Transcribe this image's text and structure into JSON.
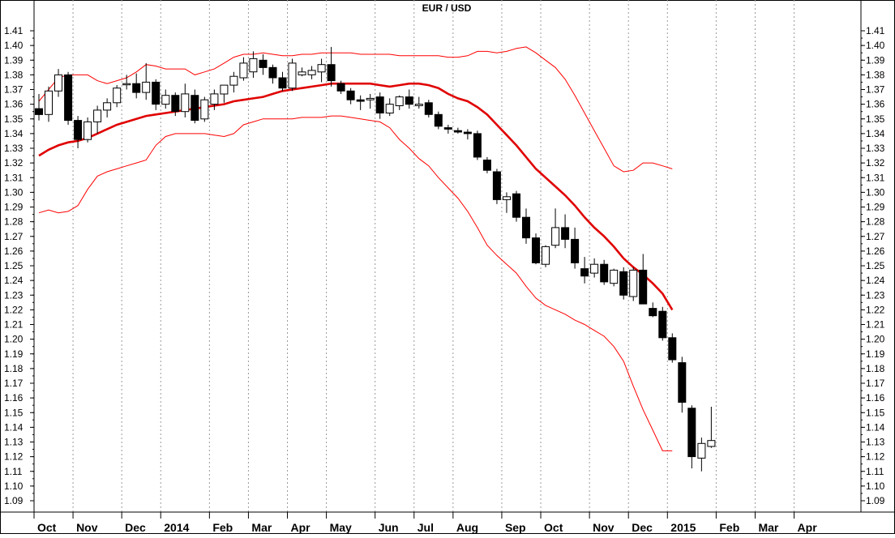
{
  "chart_data": {
    "type": "candlestick",
    "title": "EUR / USD",
    "y_ticks": [
      1.09,
      1.1,
      1.11,
      1.12,
      1.13,
      1.14,
      1.15,
      1.16,
      1.17,
      1.18,
      1.19,
      1.2,
      1.21,
      1.22,
      1.23,
      1.24,
      1.25,
      1.26,
      1.27,
      1.28,
      1.29,
      1.3,
      1.31,
      1.32,
      1.33,
      1.34,
      1.35,
      1.36,
      1.37,
      1.38,
      1.39,
      1.4,
      1.41
    ],
    "y_tick_labels": [
      "1.09",
      "1.10",
      "1.11",
      "1.12",
      "1.13",
      "1.14",
      "1.15",
      "1.16",
      "1.17",
      "1.18",
      "1.19",
      "1.20",
      "1.21",
      "1.22",
      "1.23",
      "1.24",
      "1.25",
      "1.26",
      "1.27",
      "1.28",
      "1.29",
      "1.30",
      "1.31",
      "1.32",
      "1.33",
      "1.34",
      "1.35",
      "1.36",
      "1.37",
      "1.38",
      "1.39",
      "1.40",
      "1.41"
    ],
    "ylim": [
      1.08,
      1.42
    ],
    "x_labels": [
      {
        "label": "Oct",
        "week": 0
      },
      {
        "label": "Nov",
        "week": 4
      },
      {
        "label": "Dec",
        "week": 9
      },
      {
        "label": "2014",
        "week": 13
      },
      {
        "label": "Feb",
        "week": 18
      },
      {
        "label": "Mar",
        "week": 22
      },
      {
        "label": "Apr",
        "week": 26
      },
      {
        "label": "May",
        "week": 30
      },
      {
        "label": "Jun",
        "week": 35
      },
      {
        "label": "Jul",
        "week": 39
      },
      {
        "label": "Aug",
        "week": 43
      },
      {
        "label": "Sep",
        "week": 48
      },
      {
        "label": "Oct",
        "week": 52
      },
      {
        "label": "Nov",
        "week": 57
      },
      {
        "label": "Dec",
        "week": 61
      },
      {
        "label": "2015",
        "week": 65
      },
      {
        "label": "Feb",
        "week": 70
      },
      {
        "label": "Mar",
        "week": 74
      },
      {
        "label": "Apr",
        "week": 78
      }
    ],
    "x_range_weeks": [
      0,
      81
    ],
    "grid_vertical": true,
    "colors": {
      "bullish": "#ffffff",
      "bearish": "#000000",
      "band": "#ff0000",
      "ma": "#e00000"
    },
    "candles": [
      {
        "o": 1.357,
        "h": 1.367,
        "l": 1.349,
        "c": 1.353
      },
      {
        "o": 1.353,
        "h": 1.372,
        "l": 1.348,
        "c": 1.369
      },
      {
        "o": 1.369,
        "h": 1.384,
        "l": 1.365,
        "c": 1.38
      },
      {
        "o": 1.38,
        "h": 1.382,
        "l": 1.346,
        "c": 1.349
      },
      {
        "o": 1.349,
        "h": 1.352,
        "l": 1.33,
        "c": 1.336
      },
      {
        "o": 1.336,
        "h": 1.351,
        "l": 1.334,
        "c": 1.348
      },
      {
        "o": 1.348,
        "h": 1.359,
        "l": 1.34,
        "c": 1.356
      },
      {
        "o": 1.356,
        "h": 1.364,
        "l": 1.351,
        "c": 1.361
      },
      {
        "o": 1.361,
        "h": 1.373,
        "l": 1.358,
        "c": 1.371
      },
      {
        "o": 1.374,
        "h": 1.38,
        "l": 1.37,
        "c": 1.374
      },
      {
        "o": 1.374,
        "h": 1.381,
        "l": 1.364,
        "c": 1.368
      },
      {
        "o": 1.368,
        "h": 1.388,
        "l": 1.363,
        "c": 1.375
      },
      {
        "o": 1.375,
        "h": 1.377,
        "l": 1.356,
        "c": 1.36
      },
      {
        "o": 1.36,
        "h": 1.37,
        "l": 1.357,
        "c": 1.366
      },
      {
        "o": 1.366,
        "h": 1.368,
        "l": 1.352,
        "c": 1.355
      },
      {
        "o": 1.355,
        "h": 1.374,
        "l": 1.351,
        "c": 1.367
      },
      {
        "o": 1.366,
        "h": 1.37,
        "l": 1.347,
        "c": 1.349
      },
      {
        "o": 1.35,
        "h": 1.365,
        "l": 1.348,
        "c": 1.363
      },
      {
        "o": 1.36,
        "h": 1.37,
        "l": 1.356,
        "c": 1.367
      },
      {
        "o": 1.367,
        "h": 1.372,
        "l": 1.361,
        "c": 1.373
      },
      {
        "o": 1.373,
        "h": 1.382,
        "l": 1.368,
        "c": 1.379
      },
      {
        "o": 1.378,
        "h": 1.392,
        "l": 1.376,
        "c": 1.388
      },
      {
        "o": 1.382,
        "h": 1.396,
        "l": 1.378,
        "c": 1.391
      },
      {
        "o": 1.39,
        "h": 1.394,
        "l": 1.38,
        "c": 1.385
      },
      {
        "o": 1.385,
        "h": 1.387,
        "l": 1.374,
        "c": 1.378
      },
      {
        "o": 1.378,
        "h": 1.382,
        "l": 1.369,
        "c": 1.371
      },
      {
        "o": 1.371,
        "h": 1.391,
        "l": 1.369,
        "c": 1.388
      },
      {
        "o": 1.38,
        "h": 1.385,
        "l": 1.379,
        "c": 1.382
      },
      {
        "o": 1.38,
        "h": 1.386,
        "l": 1.377,
        "c": 1.383
      },
      {
        "o": 1.382,
        "h": 1.391,
        "l": 1.375,
        "c": 1.387
      },
      {
        "o": 1.387,
        "h": 1.399,
        "l": 1.372,
        "c": 1.376
      },
      {
        "o": 1.374,
        "h": 1.376,
        "l": 1.367,
        "c": 1.369
      },
      {
        "o": 1.369,
        "h": 1.371,
        "l": 1.36,
        "c": 1.363
      },
      {
        "o": 1.363,
        "h": 1.366,
        "l": 1.356,
        "c": 1.362
      },
      {
        "o": 1.363,
        "h": 1.367,
        "l": 1.357,
        "c": 1.364
      },
      {
        "o": 1.365,
        "h": 1.368,
        "l": 1.35,
        "c": 1.354
      },
      {
        "o": 1.354,
        "h": 1.364,
        "l": 1.352,
        "c": 1.36
      },
      {
        "o": 1.359,
        "h": 1.366,
        "l": 1.356,
        "c": 1.365
      },
      {
        "o": 1.365,
        "h": 1.37,
        "l": 1.357,
        "c": 1.36
      },
      {
        "o": 1.359,
        "h": 1.365,
        "l": 1.357,
        "c": 1.36
      },
      {
        "o": 1.361,
        "h": 1.363,
        "l": 1.351,
        "c": 1.353
      },
      {
        "o": 1.353,
        "h": 1.355,
        "l": 1.343,
        "c": 1.345
      },
      {
        "o": 1.344,
        "h": 1.346,
        "l": 1.34,
        "c": 1.343
      },
      {
        "o": 1.342,
        "h": 1.344,
        "l": 1.34,
        "c": 1.341
      },
      {
        "o": 1.341,
        "h": 1.343,
        "l": 1.336,
        "c": 1.34
      },
      {
        "o": 1.34,
        "h": 1.342,
        "l": 1.322,
        "c": 1.324
      },
      {
        "o": 1.322,
        "h": 1.324,
        "l": 1.313,
        "c": 1.315
      },
      {
        "o": 1.314,
        "h": 1.316,
        "l": 1.292,
        "c": 1.295
      },
      {
        "o": 1.295,
        "h": 1.3,
        "l": 1.286,
        "c": 1.297
      },
      {
        "o": 1.299,
        "h": 1.301,
        "l": 1.28,
        "c": 1.283
      },
      {
        "o": 1.283,
        "h": 1.289,
        "l": 1.265,
        "c": 1.269
      },
      {
        "o": 1.269,
        "h": 1.272,
        "l": 1.251,
        "c": 1.252
      },
      {
        "o": 1.251,
        "h": 1.264,
        "l": 1.249,
        "c": 1.263
      },
      {
        "o": 1.264,
        "h": 1.289,
        "l": 1.262,
        "c": 1.276
      },
      {
        "o": 1.276,
        "h": 1.285,
        "l": 1.262,
        "c": 1.268
      },
      {
        "o": 1.268,
        "h": 1.276,
        "l": 1.248,
        "c": 1.252
      },
      {
        "o": 1.248,
        "h": 1.256,
        "l": 1.238,
        "c": 1.243
      },
      {
        "o": 1.245,
        "h": 1.255,
        "l": 1.242,
        "c": 1.251
      },
      {
        "o": 1.251,
        "h": 1.254,
        "l": 1.237,
        "c": 1.239
      },
      {
        "o": 1.238,
        "h": 1.248,
        "l": 1.236,
        "c": 1.247
      },
      {
        "o": 1.246,
        "h": 1.249,
        "l": 1.227,
        "c": 1.23
      },
      {
        "o": 1.229,
        "h": 1.249,
        "l": 1.226,
        "c": 1.247
      },
      {
        "o": 1.247,
        "h": 1.258,
        "l": 1.225,
        "c": 1.224
      },
      {
        "o": 1.221,
        "h": 1.225,
        "l": 1.215,
        "c": 1.216
      },
      {
        "o": 1.219,
        "h": 1.222,
        "l": 1.199,
        "c": 1.201
      },
      {
        "o": 1.201,
        "h": 1.204,
        "l": 1.184,
        "c": 1.186
      },
      {
        "o": 1.184,
        "h": 1.188,
        "l": 1.15,
        "c": 1.157
      },
      {
        "o": 1.153,
        "h": 1.155,
        "l": 1.112,
        "c": 1.12
      },
      {
        "o": 1.119,
        "h": 1.133,
        "l": 1.11,
        "c": 1.129
      },
      {
        "o": 1.127,
        "h": 1.154,
        "l": 1.126,
        "c": 1.131
      }
    ],
    "ma": [
      1.325,
      1.329,
      1.332,
      1.334,
      1.335,
      1.337,
      1.34,
      1.343,
      1.346,
      1.348,
      1.35,
      1.352,
      1.353,
      1.354,
      1.355,
      1.356,
      1.357,
      1.358,
      1.359,
      1.36,
      1.362,
      1.363,
      1.364,
      1.365,
      1.367,
      1.369,
      1.37,
      1.371,
      1.372,
      1.373,
      1.374,
      1.374,
      1.374,
      1.374,
      1.374,
      1.373,
      1.372,
      1.373,
      1.374,
      1.374,
      1.373,
      1.371,
      1.367,
      1.364,
      1.362,
      1.358,
      1.353,
      1.346,
      1.339,
      1.332,
      1.324,
      1.316,
      1.31,
      1.304,
      1.298,
      1.291,
      1.283,
      1.276,
      1.27,
      1.263,
      1.255,
      1.249,
      1.244,
      1.238,
      1.231,
      1.22
    ],
    "upper_band": [
      1.362,
      1.37,
      1.378,
      1.38,
      1.38,
      1.38,
      1.376,
      1.374,
      1.376,
      1.378,
      1.382,
      1.387,
      1.386,
      1.384,
      1.384,
      1.384,
      1.38,
      1.382,
      1.384,
      1.388,
      1.392,
      1.394,
      1.394,
      1.395,
      1.394,
      1.393,
      1.393,
      1.394,
      1.394,
      1.395,
      1.395,
      1.395,
      1.395,
      1.394,
      1.394,
      1.394,
      1.394,
      1.393,
      1.393,
      1.393,
      1.393,
      1.393,
      1.392,
      1.392,
      1.393,
      1.396,
      1.396,
      1.395,
      1.396,
      1.398,
      1.399,
      1.395,
      1.39,
      1.385,
      1.377,
      1.366,
      1.354,
      1.342,
      1.33,
      1.318,
      1.314,
      1.315,
      1.32,
      1.32,
      1.318,
      1.316
    ],
    "lower_band": [
      1.286,
      1.288,
      1.286,
      1.287,
      1.291,
      1.302,
      1.311,
      1.314,
      1.316,
      1.318,
      1.32,
      1.322,
      1.332,
      1.338,
      1.34,
      1.34,
      1.34,
      1.34,
      1.339,
      1.338,
      1.34,
      1.346,
      1.348,
      1.35,
      1.35,
      1.35,
      1.35,
      1.351,
      1.351,
      1.351,
      1.352,
      1.352,
      1.351,
      1.35,
      1.349,
      1.348,
      1.344,
      1.336,
      1.33,
      1.323,
      1.318,
      1.31,
      1.303,
      1.296,
      1.287,
      1.276,
      1.264,
      1.257,
      1.251,
      1.245,
      1.236,
      1.228,
      1.223,
      1.22,
      1.217,
      1.213,
      1.21,
      1.206,
      1.202,
      1.195,
      1.185,
      1.168,
      1.152,
      1.138,
      1.124,
      1.124
    ]
  }
}
